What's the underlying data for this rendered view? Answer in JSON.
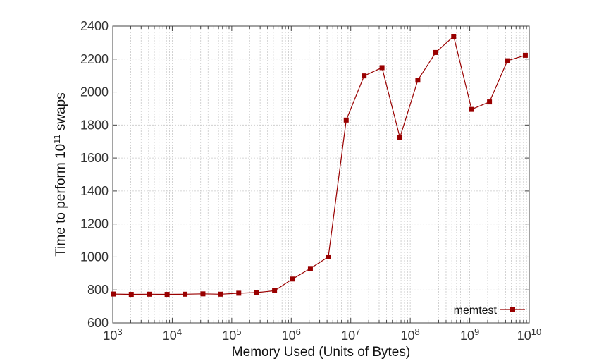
{
  "chart_data": {
    "type": "line",
    "xlabel": "Memory Used (Units of Bytes)",
    "ylabel_parts": {
      "before": "Time to perform 10",
      "sup": "11",
      "after": " swaps"
    },
    "x_scale": "log",
    "xlim": [
      1000,
      10000000000
    ],
    "ylim": [
      600,
      2400
    ],
    "x_ticks": [
      {
        "value": 1000,
        "base": "10",
        "exp": "3"
      },
      {
        "value": 10000,
        "base": "10",
        "exp": "4"
      },
      {
        "value": 100000,
        "base": "10",
        "exp": "5"
      },
      {
        "value": 1000000,
        "base": "10",
        "exp": "6"
      },
      {
        "value": 10000000,
        "base": "10",
        "exp": "7"
      },
      {
        "value": 100000000,
        "base": "10",
        "exp": "8"
      },
      {
        "value": 1000000000,
        "base": "10",
        "exp": "9"
      },
      {
        "value": 10000000000,
        "base": "10",
        "exp": "10"
      }
    ],
    "y_ticks": [
      "600",
      "800",
      "1000",
      "1200",
      "1400",
      "1600",
      "1800",
      "2000",
      "2200",
      "2400"
    ],
    "grid": true,
    "legend_position": "bottom-right",
    "series": [
      {
        "name": "memtest",
        "color": "#990000",
        "marker": "square",
        "points": [
          {
            "x": 1024,
            "y": 775
          },
          {
            "x": 2048,
            "y": 773
          },
          {
            "x": 4096,
            "y": 774
          },
          {
            "x": 8192,
            "y": 773
          },
          {
            "x": 16384,
            "y": 774
          },
          {
            "x": 32768,
            "y": 776
          },
          {
            "x": 65536,
            "y": 774
          },
          {
            "x": 131072,
            "y": 780
          },
          {
            "x": 262144,
            "y": 784
          },
          {
            "x": 524288,
            "y": 795
          },
          {
            "x": 1048576,
            "y": 866
          },
          {
            "x": 2097152,
            "y": 930
          },
          {
            "x": 4194304,
            "y": 1000
          },
          {
            "x": 8388608,
            "y": 1830
          },
          {
            "x": 16777216,
            "y": 2098
          },
          {
            "x": 33554432,
            "y": 2148
          },
          {
            "x": 67108864,
            "y": 1724
          },
          {
            "x": 134217728,
            "y": 2072
          },
          {
            "x": 268435456,
            "y": 2240
          },
          {
            "x": 536870912,
            "y": 2338
          },
          {
            "x": 1073741824,
            "y": 1895
          },
          {
            "x": 2147483648,
            "y": 1940
          },
          {
            "x": 4294967296,
            "y": 2190
          },
          {
            "x": 8589934592,
            "y": 2223
          }
        ]
      }
    ]
  }
}
